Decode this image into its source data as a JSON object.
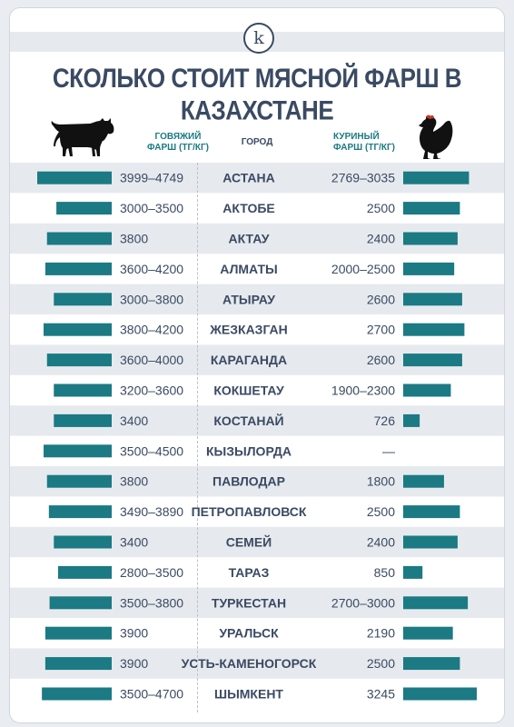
{
  "brand": {
    "logo_letter": "k"
  },
  "title": "СКОЛЬКО СТОИТ МЯСНОЙ ФАРШ В КАЗАХСТАНЕ",
  "headers": {
    "beef_line1": "ГОВЯЖИЙ",
    "beef_line2": "ФАРШ (ТГ/КГ)",
    "city": "ГОРОД",
    "chicken_line1": "КУРИНЫЙ",
    "chicken_line2": "ФАРШ (ТГ/КГ)"
  },
  "icons": {
    "beef": "cow-icon",
    "chicken": "hen-icon",
    "logo": "k-logo-icon"
  },
  "colors": {
    "bar": "#1b7a83",
    "text": "#3a4a63",
    "stripe": "#e6eaee"
  },
  "chart_data": {
    "type": "bar",
    "title": "СКОЛЬКО СТОИТ МЯСНОЙ ФАРШ В КАЗАХСТАНЕ",
    "categories": [
      "АСТАНА",
      "АКТОБЕ",
      "АКТАУ",
      "АЛМАТЫ",
      "АТЫРАУ",
      "ЖЕЗКАЗГАН",
      "КАРАГАНДА",
      "КОКШЕТАУ",
      "КОСТАНАЙ",
      "КЫЗЫЛОРДА",
      "ПАВЛОДАР",
      "ПЕТРОПАВЛОВСК",
      "СЕМЕЙ",
      "ТАРАЗ",
      "ТУРКЕСТАН",
      "УРАЛЬСК",
      "УСТЬ-КАМЕНОГОРСК",
      "ШЫМКЕНТ"
    ],
    "series": [
      {
        "name": "ГОВЯЖИЙ ФАРШ (ТГ/КГ)",
        "labels": [
          "3999–4749",
          "3000–3500",
          "3800",
          "3600–4200",
          "3000–3800",
          "3800–4200",
          "3600–4000",
          "3200–3600",
          "3400",
          "3500–4500",
          "3800",
          "3490–3890",
          "3400",
          "2800–3500",
          "3500–3800",
          "3900",
          "3900",
          "3500–4700"
        ],
        "values": [
          4374,
          3250,
          3800,
          3900,
          3400,
          4000,
          3800,
          3400,
          3400,
          4000,
          3800,
          3690,
          3400,
          3150,
          3650,
          3900,
          3900,
          4100
        ]
      },
      {
        "name": "КУРИНЫЙ ФАРШ (ТГ/КГ)",
        "labels": [
          "2769–3035",
          "2500",
          "2400",
          "2000–2500",
          "2600",
          "2700",
          "2600",
          "1900–2300",
          "726",
          "—",
          "1800",
          "2500",
          "2400",
          "850",
          "2700–3000",
          "2190",
          "2500",
          "3245"
        ],
        "values": [
          2902,
          2500,
          2400,
          2250,
          2600,
          2700,
          2600,
          2100,
          726,
          null,
          1800,
          2500,
          2400,
          850,
          2850,
          2190,
          2500,
          3245
        ]
      }
    ]
  }
}
